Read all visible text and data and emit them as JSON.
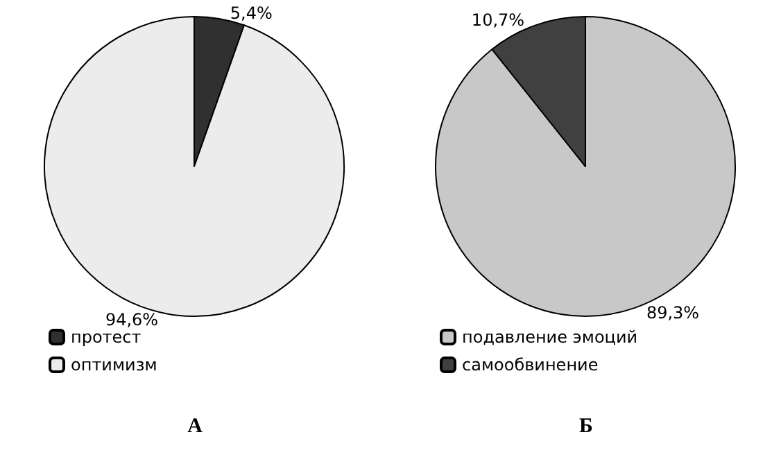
{
  "chart_data": [
    {
      "type": "pie",
      "title": "А",
      "categories": [
        "протест",
        "оптимизм"
      ],
      "values": [
        5.4,
        94.6
      ],
      "colors": [
        "#303030",
        "#ececec"
      ],
      "value_labels": [
        "5,4%",
        "94,6%"
      ],
      "legend": "bottom left"
    },
    {
      "type": "pie",
      "title": "Б",
      "categories": [
        "подавление эмоций",
        "самообвинение"
      ],
      "values": [
        89.3,
        10.7
      ],
      "colors": [
        "#c8c8c8",
        "#404040"
      ],
      "value_labels": [
        "89,3%",
        "10,7%"
      ],
      "legend": "bottom left"
    }
  ]
}
